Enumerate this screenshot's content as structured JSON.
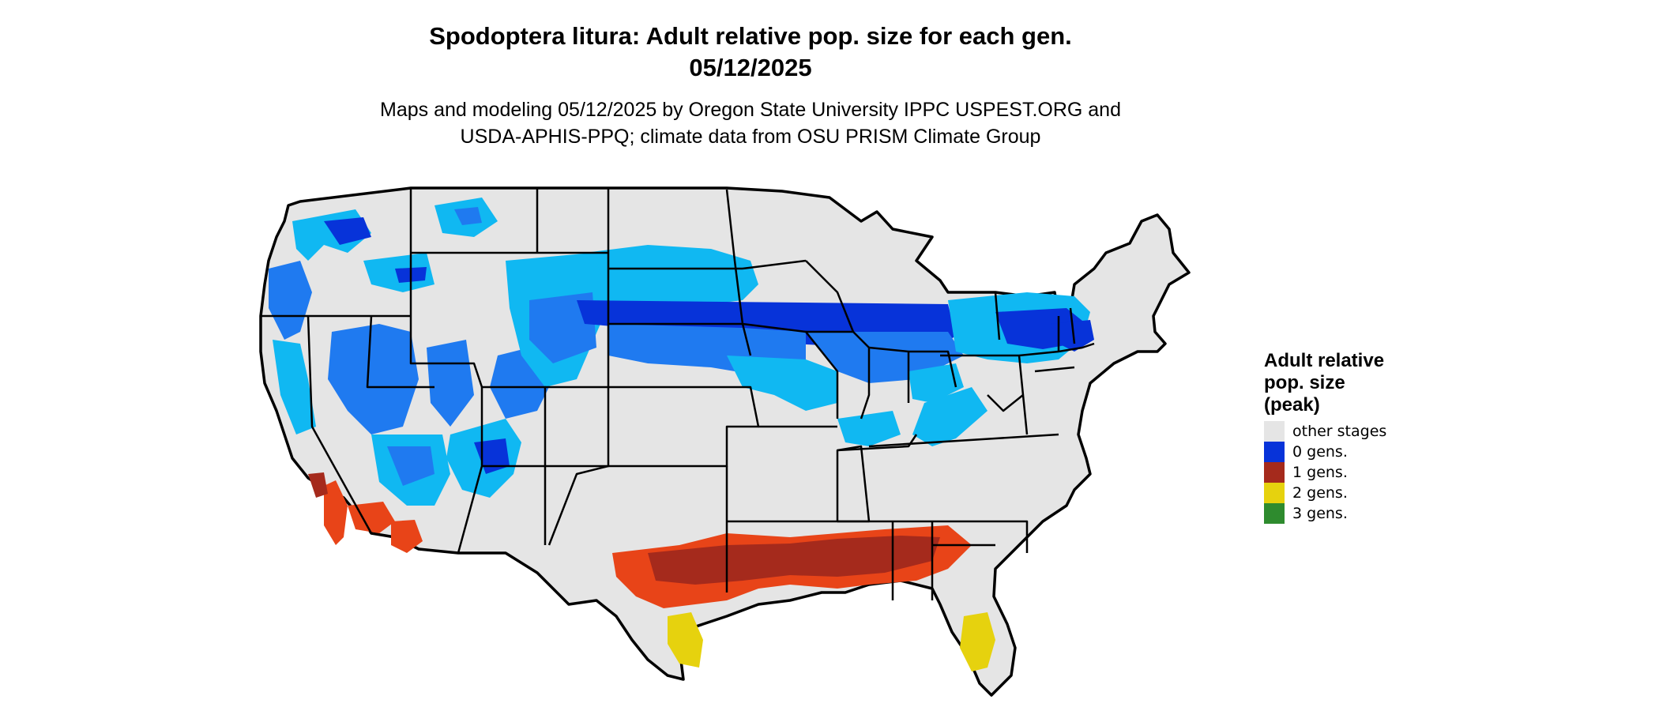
{
  "title": {
    "line1": "Spodoptera litura: Adult relative pop. size for each gen.",
    "line2": "05/12/2025"
  },
  "subtitle": {
    "line1": "Maps and modeling 05/12/2025 by Oregon State University IPPC USPEST.ORG and",
    "line2": "USDA-APHIS-PPQ; climate data from OSU PRISM Climate Group"
  },
  "map": {
    "colors": {
      "other": "#e5e5e5",
      "zero_dark": "#0733d9",
      "zero_mid": "#1f7af0",
      "zero_light": "#10b8f2",
      "one": "#e84418",
      "one_dark": "#a52a1c",
      "two": "#e6d20e",
      "three": "#2e8b2e",
      "border": "#000000"
    }
  },
  "legend": {
    "title_line1": "Adult relative",
    "title_line2": "pop. size",
    "title_line3": "(peak)",
    "items": [
      {
        "label": "other stages",
        "color": "#e5e5e5"
      },
      {
        "label": "0 gens.",
        "color": "#0733d9"
      },
      {
        "label": "1 gens.",
        "color": "#a52a1c"
      },
      {
        "label": "2 gens.",
        "color": "#e6d20e"
      },
      {
        "label": "3 gens.",
        "color": "#2e8b2e"
      }
    ]
  }
}
